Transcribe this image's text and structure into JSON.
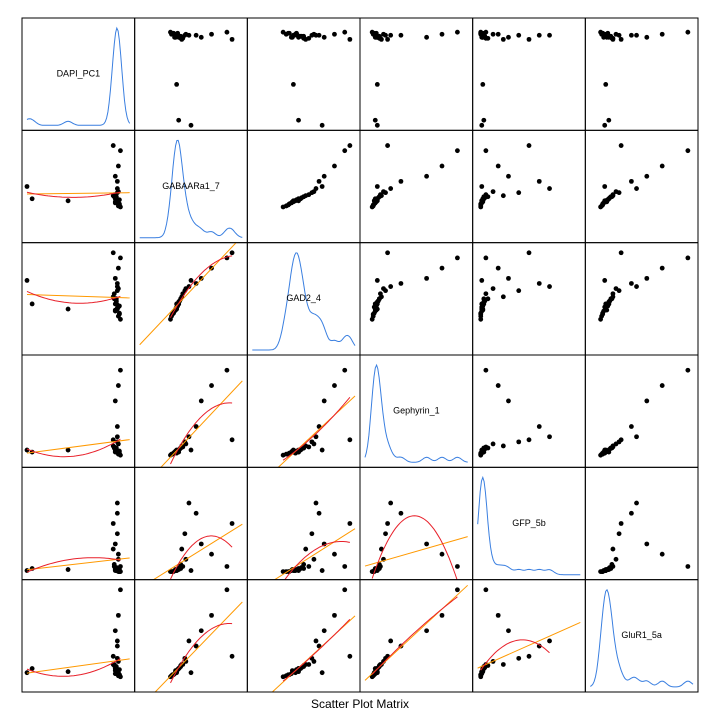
{
  "chart_data": {
    "type": "scatter_matrix",
    "title": "Scatter Plot Matrix",
    "point_color": "#000000",
    "density_color": "#3a7fe0",
    "linear_fit_color": "#ff9900",
    "smooth_fit_color": "#e8202a",
    "series": [
      {
        "name": "DAPI_PC1",
        "lim": [
          0,
          100
        ],
        "values": [
          88,
          86,
          90,
          87,
          89,
          85,
          91,
          88,
          86,
          87,
          89,
          90,
          84,
          88,
          87,
          86,
          89,
          88,
          90,
          85,
          87,
          88,
          86,
          89,
          91,
          84,
          88,
          40,
          5,
          0
        ]
      },
      {
        "name": "GABAARa1_7",
        "lim": [
          0,
          100
        ],
        "values": [
          35,
          38,
          32,
          40,
          36,
          42,
          30,
          37,
          34,
          39,
          45,
          33,
          41,
          36,
          38,
          35,
          31,
          44,
          37,
          40,
          36,
          55,
          60,
          70,
          85,
          90,
          48,
          36,
          38,
          50
        ]
      },
      {
        "name": "GAD2_4",
        "lim": [
          0,
          100
        ],
        "values": [
          40,
          45,
          35,
          50,
          42,
          55,
          30,
          44,
          38,
          48,
          60,
          36,
          52,
          41,
          47,
          39,
          33,
          58,
          43,
          50,
          45,
          65,
          70,
          80,
          90,
          95,
          62,
          40,
          45,
          68
        ]
      },
      {
        "name": "Gephyrin_1",
        "lim": [
          0,
          100
        ],
        "values": [
          10,
          12,
          8,
          14,
          9,
          15,
          7,
          11,
          10,
          13,
          18,
          9,
          16,
          10,
          12,
          11,
          8,
          20,
          11,
          14,
          10,
          35,
          60,
          75,
          90,
          22,
          25,
          12,
          10,
          12
        ]
      },
      {
        "name": "GFP_5b",
        "lim": [
          0,
          100
        ],
        "values": [
          4,
          5,
          3,
          6,
          4,
          8,
          3,
          5,
          4,
          7,
          15,
          3,
          25,
          4,
          6,
          5,
          3,
          40,
          5,
          10,
          4,
          60,
          30,
          20,
          8,
          50,
          70,
          5,
          6,
          4
        ]
      },
      {
        "name": "GluR1_5a",
        "lim": [
          0,
          100
        ],
        "values": [
          15,
          18,
          12,
          20,
          14,
          22,
          10,
          17,
          13,
          19,
          25,
          12,
          22,
          15,
          18,
          16,
          11,
          28,
          17,
          21,
          15,
          40,
          55,
          70,
          95,
          30,
          45,
          15,
          18,
          14
        ]
      }
    ]
  }
}
